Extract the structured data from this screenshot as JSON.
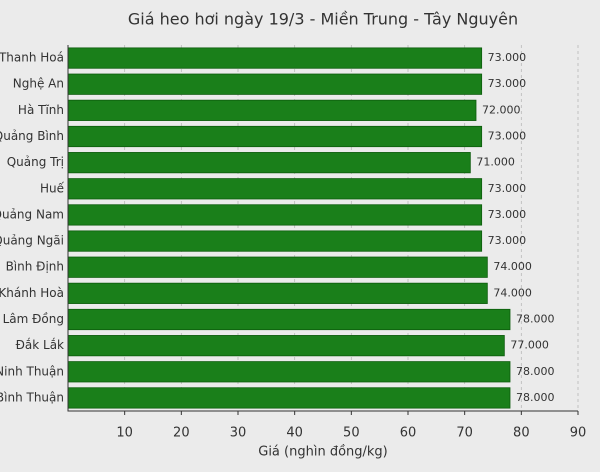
{
  "chart_data": {
    "type": "barh",
    "title": "Giá heo hơi ngày 19/3 - Miền Trung - Tây Nguyên",
    "xlabel": "Giá (nghìn đồng/kg)",
    "categories": [
      "Thanh Hoá",
      "Nghệ An",
      "Hà Tĩnh",
      "Quảng Bình",
      "Quảng Trị",
      "Huế",
      "Quảng Nam",
      "Quảng Ngãi",
      "Bình Định",
      "Khánh Hoà",
      "Lâm Đồng",
      "Đắk Lắk",
      "Ninh Thuận",
      "Bình Thuận"
    ],
    "values": [
      73,
      73,
      72,
      73,
      71,
      73,
      73,
      73,
      74,
      74,
      78,
      77,
      78,
      78
    ],
    "value_labels": [
      "73.000",
      "73.000",
      "72.000",
      "73.000",
      "71.000",
      "73.000",
      "73.000",
      "73.000",
      "74.000",
      "74.000",
      "78.000",
      "77.000",
      "78.000",
      "78.000"
    ],
    "color": "#1a7f1a",
    "xlim": [
      0,
      90
    ],
    "xticks": [
      10,
      20,
      30,
      40,
      50,
      60,
      70,
      80,
      90
    ],
    "grid": true
  }
}
